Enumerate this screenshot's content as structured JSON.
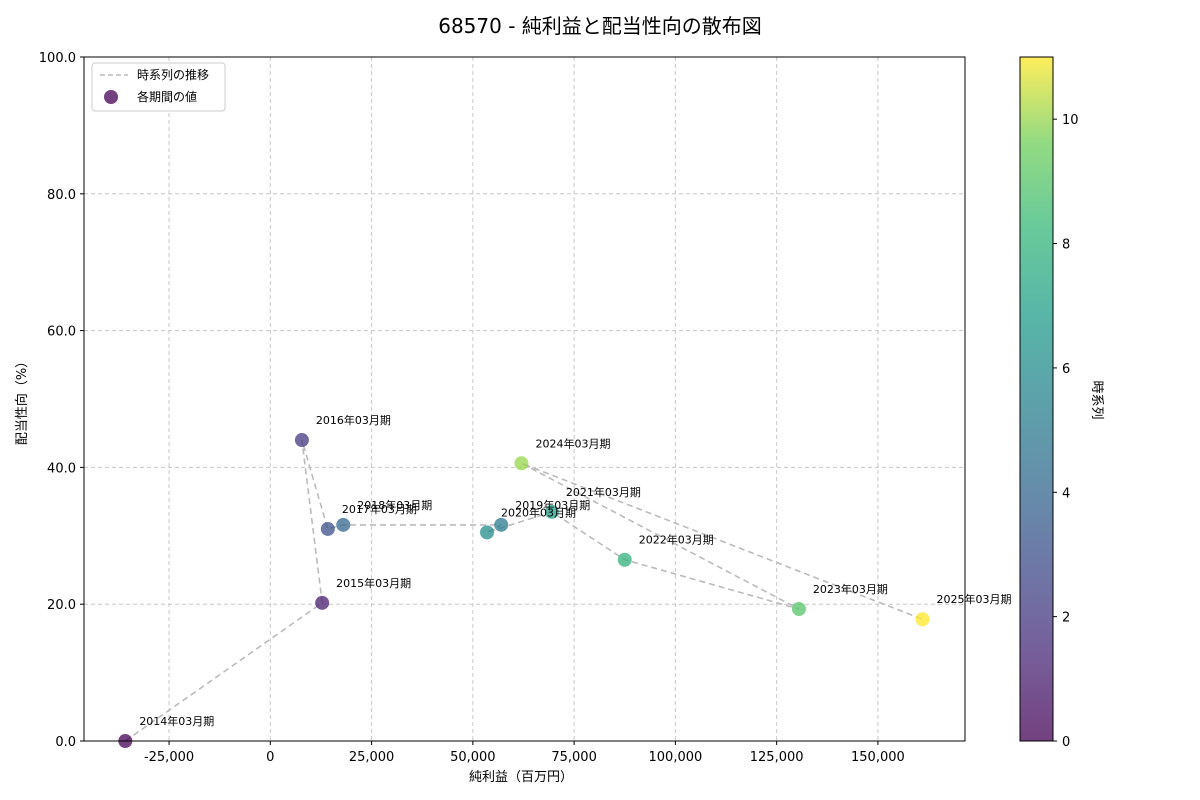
{
  "chart_data": {
    "type": "scatter",
    "title": "68570 - 純利益と配当性向の散布図",
    "xlabel": "純利益（百万円）",
    "ylabel": "配当性向（%）",
    "xlim": [
      -46000,
      171500
    ],
    "ylim": [
      0,
      100
    ],
    "xticks": [
      -25000,
      0,
      25000,
      50000,
      75000,
      100000,
      125000,
      150000
    ],
    "xtick_labels": [
      "-25,000",
      "0",
      "25,000",
      "50,000",
      "75,000",
      "100,000",
      "125,000",
      "150,000"
    ],
    "yticks": [
      0,
      20,
      40,
      60,
      80,
      100
    ],
    "ytick_labels": [
      "0.0",
      "20.0",
      "40.0",
      "60.0",
      "80.0",
      "100.0"
    ],
    "grid": true,
    "legend": {
      "position": "top-left",
      "line_label": "時系列の推移",
      "point_label": "各期間の値"
    },
    "colorbar": {
      "label": "時系列",
      "range": [
        0,
        11
      ],
      "ticks": [
        0,
        2,
        4,
        6,
        8,
        10
      ],
      "tick_labels": [
        "0",
        "2",
        "4",
        "6",
        "8",
        "10"
      ]
    },
    "points": [
      {
        "label": "2014年03月期",
        "x": -35800,
        "y": 0.0,
        "t": 0
      },
      {
        "label": "2015年03月期",
        "x": 12800,
        "y": 20.2,
        "t": 1
      },
      {
        "label": "2016年03月期",
        "x": 7800,
        "y": 44.0,
        "t": 2
      },
      {
        "label": "2017年03月期",
        "x": 14200,
        "y": 31.0,
        "t": 3
      },
      {
        "label": "2018年03月期",
        "x": 18000,
        "y": 31.6,
        "t": 4
      },
      {
        "label": "2019年03月期",
        "x": 57000,
        "y": 31.6,
        "t": 5
      },
      {
        "label": "2020年03月期",
        "x": 53500,
        "y": 30.5,
        "t": 6
      },
      {
        "label": "2021年03月期",
        "x": 69500,
        "y": 33.5,
        "t": 7
      },
      {
        "label": "2022年03月期",
        "x": 87500,
        "y": 26.5,
        "t": 8
      },
      {
        "label": "2023年03月期",
        "x": 130500,
        "y": 19.3,
        "t": 9
      },
      {
        "label": "2024年03月期",
        "x": 62000,
        "y": 40.6,
        "t": 10
      },
      {
        "label": "2025年03月期",
        "x": 161000,
        "y": 17.8,
        "t": 11
      }
    ],
    "line_color": "#bbbbbb"
  }
}
